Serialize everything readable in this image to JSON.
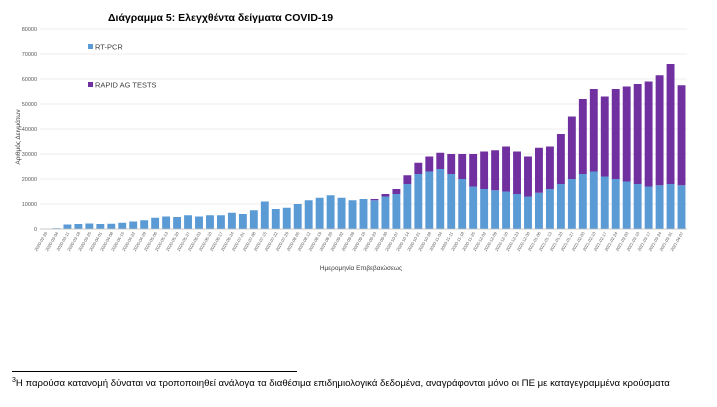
{
  "footnote": {
    "marker": "3",
    "text": "Η παρούσα κατανομή δύναται να τροποποιηθεί ανάλογα τα διαθέσιμα επιδημιολογικά δεδομένα, αναγράφονται μόνο οι ΠΕ με καταγεγραμμένα κρούσματα"
  },
  "chart_data": {
    "type": "bar",
    "stacked": true,
    "title": "Διάγραμμα 5: Ελεγχθέντα δείγματα COVID-19",
    "xlabel": "Ημερομηνία Επιβεβαιώσεως",
    "ylabel": "Αριθμός Δειγμάτων",
    "ylim": [
      0,
      80000
    ],
    "yticks": [
      0,
      10000,
      20000,
      30000,
      40000,
      50000,
      60000,
      70000,
      80000
    ],
    "grid": true,
    "legend_position": "top-left",
    "colors": {
      "rtpcr": "#5b9bd5",
      "rapid": "#7030a0",
      "grid": "#d9d9d9",
      "axis": "#bfbfbf"
    },
    "categories": [
      "2020-02-26",
      "2020-03-04",
      "2020-03-11",
      "2020-03-18",
      "2020-03-25",
      "2020-04-01",
      "2020-04-08",
      "2020-04-15",
      "2020-04-22",
      "2020-04-29",
      "2020-05-06",
      "2020-05-13",
      "2020-05-20",
      "2020-05-27",
      "2020-06-03",
      "2020-06-10",
      "2020-06-17",
      "2020-06-24",
      "2020-07-01",
      "2020-07-08",
      "2020-07-15",
      "2020-07-22",
      "2020-07-29",
      "2020-08-05",
      "2020-08-12",
      "2020-08-19",
      "2020-08-26",
      "2020-09-02",
      "2020-09-09",
      "2020-09-16",
      "2020-09-23",
      "2020-09-30",
      "2020-10-07",
      "2020-10-14",
      "2020-10-21",
      "2020-10-28",
      "2020-11-04",
      "2020-11-11",
      "2020-11-18",
      "2020-11-25",
      "2020-12-02",
      "2020-12-09",
      "2020-12-16",
      "2020-12-23",
      "2020-12-30",
      "2021-01-06",
      "2021-01-13",
      "2021-01-20",
      "2021-01-27",
      "2021-02-03",
      "2021-02-10",
      "2021-02-17",
      "2021-02-24",
      "2021-03-03",
      "2021-03-10",
      "2021-03-17",
      "2021-03-24",
      "2021-03-31",
      "2021-04-07"
    ],
    "series": [
      {
        "name": "RT-PCR",
        "values": [
          0,
          300,
          1800,
          2000,
          2200,
          2000,
          2100,
          2500,
          3000,
          3500,
          4500,
          5000,
          4800,
          5500,
          5000,
          5500,
          5500,
          6500,
          6000,
          7500,
          11000,
          8000,
          8500,
          10000,
          11500,
          12500,
          13500,
          12500,
          11500,
          12000,
          11500,
          13000,
          14000,
          18000,
          22000,
          23000,
          24000,
          22000,
          20000,
          17000,
          16000,
          15500,
          15000,
          14000,
          13000,
          14500,
          16000,
          18000,
          20000,
          22000,
          23000,
          21000,
          20000,
          19000,
          18000,
          17000,
          17500,
          18000,
          17500
        ]
      },
      {
        "name": "RAPID AG TESTS",
        "values": [
          0,
          0,
          0,
          0,
          0,
          0,
          0,
          0,
          0,
          0,
          0,
          0,
          0,
          0,
          0,
          0,
          0,
          0,
          0,
          0,
          0,
          0,
          0,
          0,
          0,
          0,
          0,
          0,
          0,
          0,
          500,
          1000,
          2000,
          3500,
          4500,
          6000,
          6500,
          8000,
          10000,
          13000,
          15000,
          16000,
          18000,
          17000,
          16000,
          18000,
          17000,
          20000,
          25000,
          30000,
          33000,
          32000,
          36000,
          38000,
          40000,
          42000,
          44000,
          48000,
          40000
        ]
      }
    ]
  }
}
